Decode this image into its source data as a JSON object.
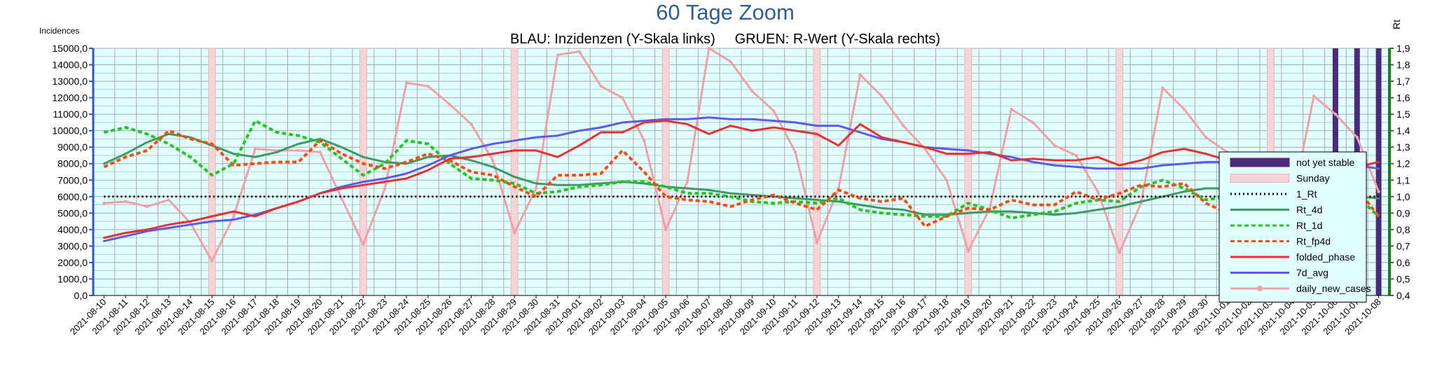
{
  "chart_data": {
    "type": "line",
    "title": "60 Tage Zoom",
    "subtitle": "BLAU: Inzidenzen (Y-Skala links)     GRUEN: R-Wert (Y-Skala rechts)",
    "ylabel_left": "Incidences",
    "ylabel_right": "Rt",
    "ylim_left": [
      0,
      15000
    ],
    "ylim_right": [
      0.4,
      1.9
    ],
    "yticks_left": [
      "0,0",
      "1000,0",
      "2000,0",
      "3000,0",
      "4000,0",
      "5000,0",
      "6000,0",
      "7000,0",
      "8000,0",
      "9000,0",
      "10000,0",
      "11000,0",
      "12000,0",
      "13000,0",
      "14000,0",
      "15000,0"
    ],
    "yticks_right": [
      "0,4",
      "0,5",
      "0,6",
      "0,7",
      "0,8",
      "0,9",
      "1,0",
      "1,1",
      "1,2",
      "1,3",
      "1,4",
      "1,5",
      "1,6",
      "1,7",
      "1,8",
      "1,9"
    ],
    "grid": true,
    "legend_position": "right",
    "background_color": "#e0ffff",
    "x": [
      "2021-08-10",
      "2021-08-11",
      "2021-08-12",
      "2021-08-13",
      "2021-08-14",
      "2021-08-15",
      "2021-08-16",
      "2021-08-17",
      "2021-08-18",
      "2021-08-19",
      "2021-08-20",
      "2021-08-21",
      "2021-08-22",
      "2021-08-23",
      "2021-08-24",
      "2021-08-25",
      "2021-08-26",
      "2021-08-27",
      "2021-08-28",
      "2021-08-29",
      "2021-08-30",
      "2021-08-31",
      "2021-09-01",
      "2021-09-02",
      "2021-09-03",
      "2021-09-04",
      "2021-09-05",
      "2021-09-06",
      "2021-09-07",
      "2021-09-08",
      "2021-09-09",
      "2021-09-10",
      "2021-09-11",
      "2021-09-12",
      "2021-09-13",
      "2021-09-14",
      "2021-09-15",
      "2021-09-16",
      "2021-09-17",
      "2021-09-18",
      "2021-09-19",
      "2021-09-20",
      "2021-09-21",
      "2021-09-22",
      "2021-09-23",
      "2021-09-24",
      "2021-09-25",
      "2021-09-26",
      "2021-09-27",
      "2021-09-28",
      "2021-09-29",
      "2021-09-30",
      "2021-10-01",
      "2021-10-02",
      "2021-10-03",
      "2021-10-04",
      "2021-10-05",
      "2021-10-06",
      "2021-10-07",
      "2021-10-08"
    ],
    "sundays": [
      "2021-08-15",
      "2021-08-22",
      "2021-08-29",
      "2021-09-05",
      "2021-09-12",
      "2021-09-19",
      "2021-09-26",
      "2021-10-03"
    ],
    "not_yet_stable": [
      "2021-10-06",
      "2021-10-07",
      "2021-10-08"
    ],
    "series_left": [
      {
        "name": "folded_phase",
        "color": "#e83030",
        "dash": "",
        "width": 3,
        "values": [
          3500,
          3800,
          4000,
          4300,
          4500,
          4800,
          5100,
          4800,
          5300,
          5700,
          6200,
          6500,
          6700,
          6900,
          7100,
          7600,
          8300,
          8400,
          8600,
          8800,
          8800,
          8400,
          9100,
          9900,
          9900,
          10500,
          10600,
          10400,
          9800,
          10300,
          10000,
          10200,
          10000,
          9800,
          9100,
          10400,
          9600,
          9300,
          9000,
          8600,
          8600,
          8700,
          8200,
          8300,
          8200,
          8200,
          8400,
          7900,
          8200,
          8700,
          8900,
          8600,
          8200,
          7900,
          7600,
          7700,
          7700,
          7800,
          7800,
          8100
        ]
      },
      {
        "name": "7d_avg",
        "color": "#5a5af0",
        "dash": "",
        "width": 3,
        "values": [
          3300,
          3600,
          3900,
          4100,
          4300,
          4500,
          4600,
          4900,
          5300,
          5700,
          6200,
          6600,
          6900,
          7100,
          7400,
          7900,
          8500,
          8900,
          9200,
          9400,
          9600,
          9700,
          10000,
          10200,
          10500,
          10600,
          10700,
          10700,
          10800,
          10700,
          10700,
          10600,
          10500,
          10300,
          10300,
          9900,
          9500,
          9300,
          9000,
          8900,
          8800,
          8600,
          8400,
          8100,
          7900,
          7800,
          7700,
          7700,
          7700,
          7900,
          8000,
          8100,
          8100,
          8100,
          8100,
          8100,
          8000,
          8000,
          7900,
          7700
        ]
      },
      {
        "name": "daily_new_cases",
        "color": "#f0a0a8",
        "dash": "",
        "width": 3,
        "values": [
          5600,
          5700,
          5400,
          5800,
          4400,
          2100,
          4800,
          8900,
          8800,
          8800,
          8700,
          5900,
          3100,
          6500,
          12900,
          12700,
          11600,
          10400,
          8200,
          3800,
          6500,
          14600,
          14800,
          12700,
          12000,
          9400,
          4000,
          6900,
          15000,
          14200,
          12400,
          11200,
          8700,
          3200,
          6500,
          13400,
          12100,
          10300,
          8900,
          7000,
          2700,
          5300,
          11300,
          10500,
          9100,
          8500,
          6300,
          2600,
          5600,
          12600,
          11300,
          9600,
          8700,
          6400,
          2600,
          5600,
          12100,
          11000,
          9600,
          6300
        ]
      }
    ],
    "series_right": [
      {
        "name": "Rt_4d",
        "color": "#3c9a62",
        "dash": "",
        "width": 3,
        "values": [
          1.2,
          1.26,
          1.33,
          1.38,
          1.36,
          1.31,
          1.26,
          1.24,
          1.27,
          1.32,
          1.35,
          1.3,
          1.24,
          1.21,
          1.2,
          1.24,
          1.25,
          1.22,
          1.18,
          1.12,
          1.08,
          1.07,
          1.07,
          1.08,
          1.09,
          1.08,
          1.06,
          1.05,
          1.04,
          1.02,
          1.01,
          1.0,
          0.99,
          0.98,
          0.97,
          0.95,
          0.93,
          0.92,
          0.89,
          0.89,
          0.9,
          0.91,
          0.91,
          0.9,
          0.89,
          0.9,
          0.92,
          0.94,
          0.97,
          1.0,
          1.03,
          1.05,
          1.05,
          1.02,
          1.0,
          0.99,
          0.99,
          0.99,
          1.0,
          0.99
        ]
      },
      {
        "name": "Rt_1d",
        "color": "#22c522",
        "dash": "6,4",
        "width": 4,
        "values": [
          1.39,
          1.42,
          1.38,
          1.32,
          1.24,
          1.13,
          1.2,
          1.46,
          1.39,
          1.37,
          1.33,
          1.23,
          1.13,
          1.2,
          1.34,
          1.32,
          1.2,
          1.11,
          1.1,
          1.08,
          1.02,
          1.03,
          1.06,
          1.07,
          1.09,
          1.09,
          1.06,
          1.02,
          1.02,
          1.0,
          0.97,
          0.96,
          0.97,
          0.96,
          0.99,
          0.92,
          0.9,
          0.89,
          0.88,
          0.88,
          0.96,
          0.92,
          0.87,
          0.89,
          0.91,
          0.96,
          0.98,
          0.97,
          1.06,
          1.1,
          1.05,
          0.98,
          1.0,
          1.0,
          0.99,
          0.98,
          0.97,
          0.98,
          1.0,
          0.88
        ]
      },
      {
        "name": "Rt_fp4d",
        "color": "#ff4a10",
        "dash": "6,4",
        "width": 4,
        "values": [
          1.18,
          1.24,
          1.28,
          1.4,
          1.35,
          1.32,
          1.19,
          1.2,
          1.21,
          1.21,
          1.34,
          1.26,
          1.2,
          1.17,
          1.21,
          1.26,
          1.22,
          1.15,
          1.13,
          1.06,
          1.0,
          1.13,
          1.13,
          1.14,
          1.28,
          1.15,
          1.0,
          0.98,
          0.97,
          0.94,
          0.98,
          1.01,
          0.96,
          0.92,
          1.04,
          0.99,
          0.97,
          0.99,
          0.82,
          0.88,
          0.93,
          0.92,
          0.98,
          0.95,
          0.95,
          1.03,
          0.98,
          1.02,
          1.07,
          1.06,
          1.08,
          0.96,
          0.9,
          0.86,
          0.9,
          0.93,
          0.97,
          1.02,
          1.05,
          0.88
        ]
      },
      {
        "name": "1_Rt",
        "color": "#000000",
        "dash": "2,4",
        "width": 3,
        "values": [
          1,
          1,
          1,
          1,
          1,
          1,
          1,
          1,
          1,
          1,
          1,
          1,
          1,
          1,
          1,
          1,
          1,
          1,
          1,
          1,
          1,
          1,
          1,
          1,
          1,
          1,
          1,
          1,
          1,
          1,
          1,
          1,
          1,
          1,
          1,
          1,
          1,
          1,
          1,
          1,
          1,
          1,
          1,
          1,
          1,
          1,
          1,
          1,
          1,
          1,
          1,
          1,
          1,
          1,
          1,
          1,
          1,
          1,
          1,
          1
        ]
      }
    ],
    "legend": [
      {
        "name": "not yet stable",
        "kind": "box",
        "color": "#4b2a7b"
      },
      {
        "name": "Sunday",
        "kind": "box",
        "color": "#f4d4d6"
      },
      {
        "name": "1_Rt",
        "kind": "line",
        "color": "#000000",
        "dash": "2,4"
      },
      {
        "name": "Rt_4d",
        "kind": "line",
        "color": "#3c9a62",
        "dash": ""
      },
      {
        "name": "Rt_1d",
        "kind": "line",
        "color": "#22c522",
        "dash": "6,4"
      },
      {
        "name": "Rt_fp4d",
        "kind": "line",
        "color": "#ff4a10",
        "dash": "6,4"
      },
      {
        "name": "folded_phase",
        "kind": "line",
        "color": "#e83030",
        "dash": ""
      },
      {
        "name": "7d_avg",
        "kind": "line",
        "color": "#5a5af0",
        "dash": ""
      },
      {
        "name": "daily_new_cases",
        "kind": "line-marker",
        "color": "#f0a0a8",
        "dash": ""
      }
    ]
  }
}
